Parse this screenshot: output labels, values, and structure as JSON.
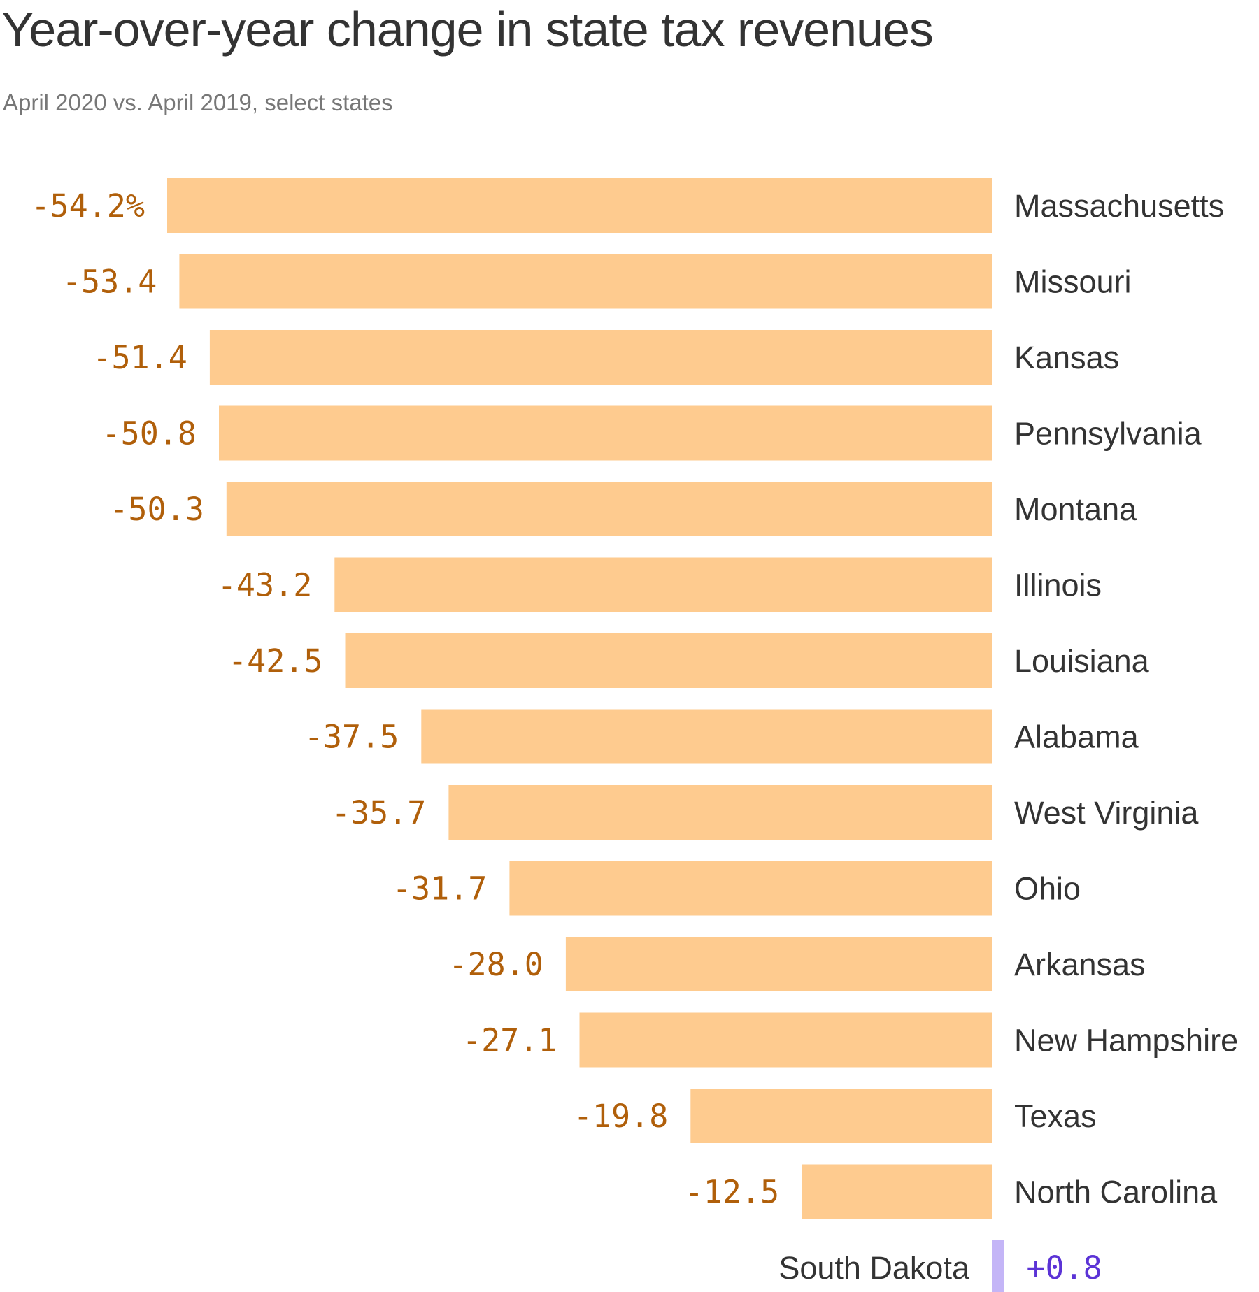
{
  "header": {
    "title": "Year-over-year change in state tax revenues",
    "subtitle": "April 2020 vs. April 2019, select states"
  },
  "colors": {
    "negative_bar": "#fecb8f",
    "negative_text": "#b05f0a",
    "positive_bar": "#c4b5f7",
    "positive_text": "#5b33d6"
  },
  "chart_data": {
    "type": "bar",
    "orientation": "horizontal",
    "title": "Year-over-year change in state tax revenues",
    "subtitle": "April 2020 vs. April 2019, select states",
    "unit": "%",
    "categories": [
      "Massachusetts",
      "Missouri",
      "Kansas",
      "Pennsylvania",
      "Montana",
      "Illinois",
      "Louisiana",
      "Alabama",
      "West Virginia",
      "Ohio",
      "Arkansas",
      "New Hampshire",
      "Texas",
      "North Carolina",
      "South Dakota"
    ],
    "values": [
      -54.2,
      -53.4,
      -51.4,
      -50.8,
      -50.3,
      -43.2,
      -42.5,
      -37.5,
      -35.7,
      -31.7,
      -28.0,
      -27.1,
      -19.8,
      -12.5,
      0.8
    ],
    "value_labels": [
      "-54.2%",
      "-53.4",
      "-51.4",
      "-50.8",
      "-50.3",
      "-43.2",
      "-42.5",
      "-37.5",
      "-35.7",
      "-31.7",
      "-28.0",
      "-27.1",
      "-19.8",
      "-12.5",
      "+0.8"
    ],
    "xlim": [
      -54.2,
      0.8
    ],
    "grid": false,
    "legend": "none"
  }
}
